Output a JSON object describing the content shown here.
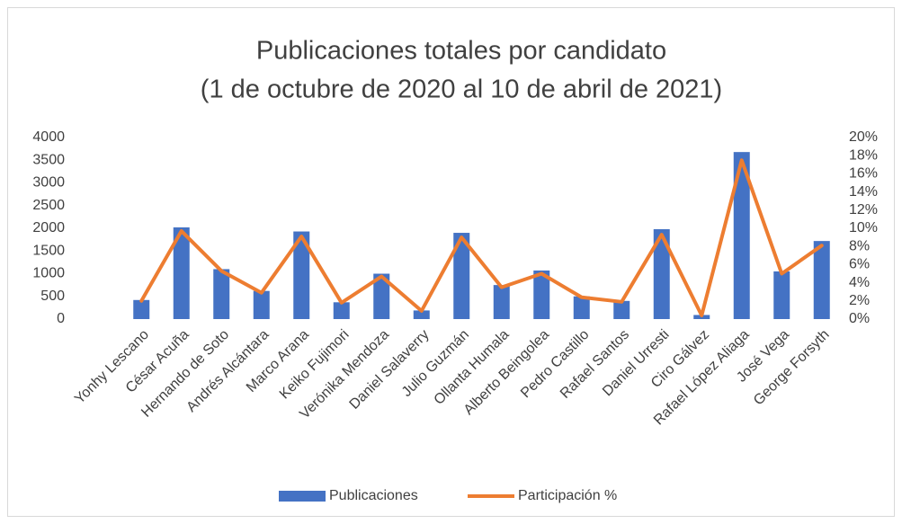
{
  "chart_data": {
    "type": "bar_line",
    "title": "Publicaciones totales por candidato",
    "subtitle": "(1 de octubre de 2020 al 10 de abril de 2021)",
    "categories": [
      "Yonhy Lescano",
      "César Acuña",
      "Hernando de Soto",
      "Andrés Alcántara",
      "Marco Arana",
      "Keiko Fujimori",
      "Verónika Mendoza",
      "Daniel Salaverry",
      "Julio Guzmán",
      "Ollanta Humala",
      "Alberto Beingolea",
      "Pedro Castillo",
      "Rafael Santos",
      "Daniel Urresti",
      "Ciro Gálvez",
      "Rafael López Aliaga",
      "José Vega",
      "George Forsyth"
    ],
    "series": [
      {
        "name": "Publicaciones",
        "type": "bar",
        "color": "#4472c4",
        "values": [
          420,
          2020,
          1100,
          620,
          1930,
          370,
          1000,
          190,
          1900,
          750,
          1070,
          500,
          400,
          1980,
          90,
          3680,
          1050,
          1720
        ]
      },
      {
        "name": "Participación %",
        "type": "line",
        "axis": "y2",
        "color": "#ed7d31",
        "values": [
          2.0,
          9.7,
          5.3,
          2.9,
          9.1,
          1.8,
          4.7,
          0.9,
          9.0,
          3.5,
          5.0,
          2.4,
          1.9,
          9.3,
          0.4,
          17.5,
          5.0,
          8.1
        ]
      }
    ],
    "ylim": [
      0,
      4000
    ],
    "yticks": [
      0,
      500,
      1000,
      1500,
      2000,
      2500,
      3000,
      3500,
      4000
    ],
    "y2lim": [
      0,
      20
    ],
    "y2ticks": [
      {
        "value": 0,
        "label": "0%"
      },
      {
        "value": 2,
        "label": "2%"
      },
      {
        "value": 4,
        "label": "4%"
      },
      {
        "value": 6,
        "label": "6%"
      },
      {
        "value": 8,
        "label": "8%"
      },
      {
        "value": 10,
        "label": "10%"
      },
      {
        "value": 12,
        "label": "12%"
      },
      {
        "value": 14,
        "label": "14%"
      },
      {
        "value": 16,
        "label": "16%"
      },
      {
        "value": 18,
        "label": "18%"
      },
      {
        "value": 20,
        "label": "20%"
      }
    ],
    "legend": "bottom"
  }
}
